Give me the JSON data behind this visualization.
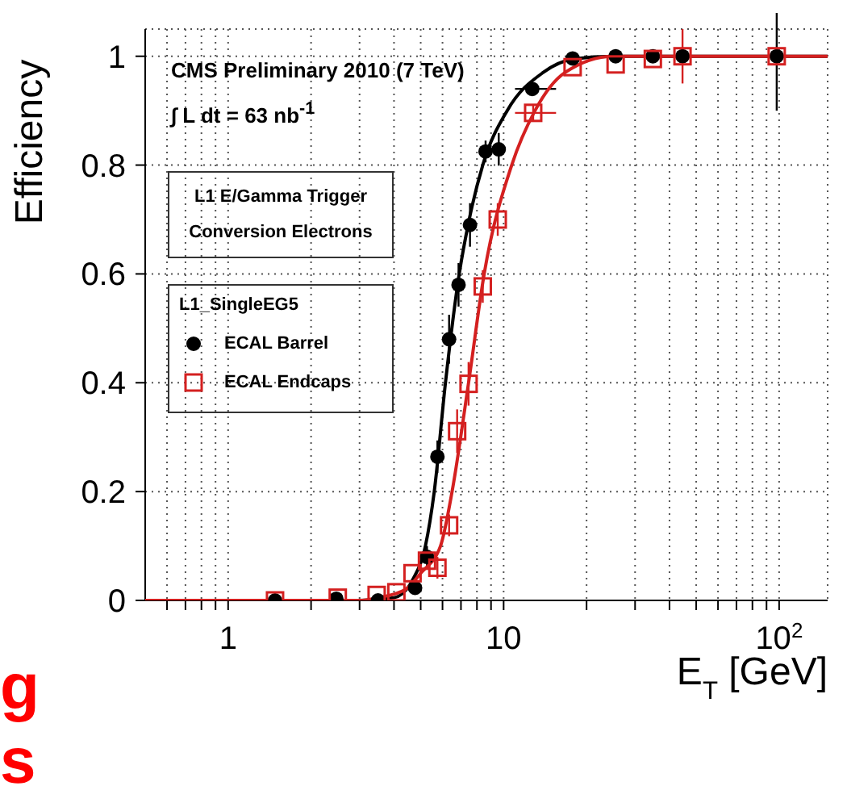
{
  "chart_data": {
    "type": "scatter",
    "xlabel": "E$_{T}$ [GeV]",
    "ylabel": "Efficiency",
    "log": "x",
    "grid": true,
    "legend": "left",
    "legend_title": "L1_SingleEG5",
    "xlim": [
      0.5,
      150
    ],
    "ylim": [
      0,
      1.05
    ],
    "xticks": [
      {
        "value": 0.6,
        "label": null
      },
      {
        "value": 0.7,
        "label": null
      },
      {
        "value": 0.8,
        "label": null
      },
      {
        "value": 0.9,
        "label": null
      },
      1,
      {
        "value": 2,
        "label": null
      },
      {
        "value": 3,
        "label": null
      },
      {
        "value": 4,
        "label": null
      },
      {
        "value": 5,
        "label": null
      },
      {
        "value": 6,
        "label": null
      },
      {
        "value": 7,
        "label": null
      },
      {
        "value": 8,
        "label": null
      },
      {
        "value": 9,
        "label": null
      },
      10,
      {
        "value": 20,
        "label": null
      },
      {
        "value": 30,
        "label": null
      },
      {
        "value": 40,
        "label": null
      },
      {
        "value": 50,
        "label": null
      },
      {
        "value": 60,
        "label": null
      },
      {
        "value": 70,
        "label": null
      },
      {
        "value": 80,
        "label": null
      },
      {
        "value": 90,
        "label": null
      },
      {
        "value": 100,
        "label": "10$^{2}$"
      }
    ],
    "yticks": [
      0,
      0.2,
      0.4,
      0.6,
      0.8,
      1
    ],
    "annotations": [
      "CMS Preliminary 2010 (7 TeV)",
      "∫ L dt = 63 nb$^{-1}$",
      "L1 E/Gamma Trigger",
      "Conversion Electrons",
      "g",
      "s"
    ],
    "series": [
      {
        "type": "line",
        "color": "#000000",
        "marker": "none",
        "x": [
          0.5,
          3,
          4,
          4.7,
          5.2,
          5.6,
          6.15,
          6.9,
          7.5,
          8.4,
          10.3,
          13.9,
          18,
          25,
          150
        ],
        "values": [
          0,
          0,
          0.005,
          0.04,
          0.1,
          0.2,
          0.4,
          0.6,
          0.7,
          0.8,
          0.9,
          0.97,
          0.995,
          1,
          1
        ]
      },
      {
        "type": "line",
        "color": "#d42020",
        "marker": "none",
        "x": [
          0.5,
          3,
          3.5,
          4.4,
          5,
          5.9,
          6.5,
          7.46,
          8.5,
          10.7,
          13,
          16.7,
          25,
          150
        ],
        "values": [
          0,
          0,
          0.005,
          0.02,
          0.05,
          0.1,
          0.2,
          0.4,
          0.6,
          0.8,
          0.9,
          0.97,
          1,
          1
        ]
      },
      {
        "name": "ECAL Barrel",
        "color": "#000000",
        "marker": "circle",
        "x": [
          1.48,
          2.47,
          3.5,
          4.77,
          5.27,
          5.75,
          6.34,
          6.86,
          7.55,
          8.6,
          9.6,
          12.7,
          17.8,
          25.5,
          34.8,
          44.6,
          98
        ],
        "values": [
          0,
          0.003,
          0,
          0.023,
          0.08,
          0.264,
          0.48,
          0.58,
          0.69,
          0.825,
          0.829,
          0.94,
          0.996,
          1,
          1,
          1,
          1
        ],
        "errors": [
          null,
          null,
          null,
          null,
          0.02,
          0.03,
          0.045,
          0.04,
          0.04,
          0.02,
          0.03,
          0.01,
          null,
          null,
          null,
          null,
          0.1
        ],
        "xerrors": [
          null,
          null,
          null,
          null,
          null,
          null,
          null,
          null,
          null,
          null,
          null,
          [
            11,
            15.5
          ],
          null,
          null,
          null,
          null,
          null
        ]
      },
      {
        "name": "ECAL Endcaps",
        "color": "#d42020",
        "marker": "square",
        "x": [
          1.48,
          2.5,
          3.46,
          4.08,
          4.67,
          5.27,
          5.75,
          6.34,
          6.78,
          7.46,
          8.4,
          9.52,
          12.8,
          17.8,
          25.5,
          34.8,
          44.6,
          98
        ],
        "values": [
          0,
          0.005,
          0.01,
          0.015,
          0.05,
          0.073,
          0.06,
          0.138,
          0.311,
          0.398,
          0.577,
          0.7,
          0.896,
          0.98,
          0.985,
          0.995,
          1,
          1
        ],
        "errors": [
          null,
          null,
          null,
          null,
          null,
          null,
          0.02,
          0.02,
          0.04,
          0.04,
          0.03,
          0.03,
          0.015,
          null,
          null,
          null,
          0.05,
          null
        ],
        "xerrors": [
          null,
          null,
          null,
          null,
          null,
          null,
          null,
          null,
          null,
          null,
          null,
          null,
          [
            11,
            15.5
          ],
          null,
          null,
          null,
          null,
          null
        ]
      }
    ]
  }
}
